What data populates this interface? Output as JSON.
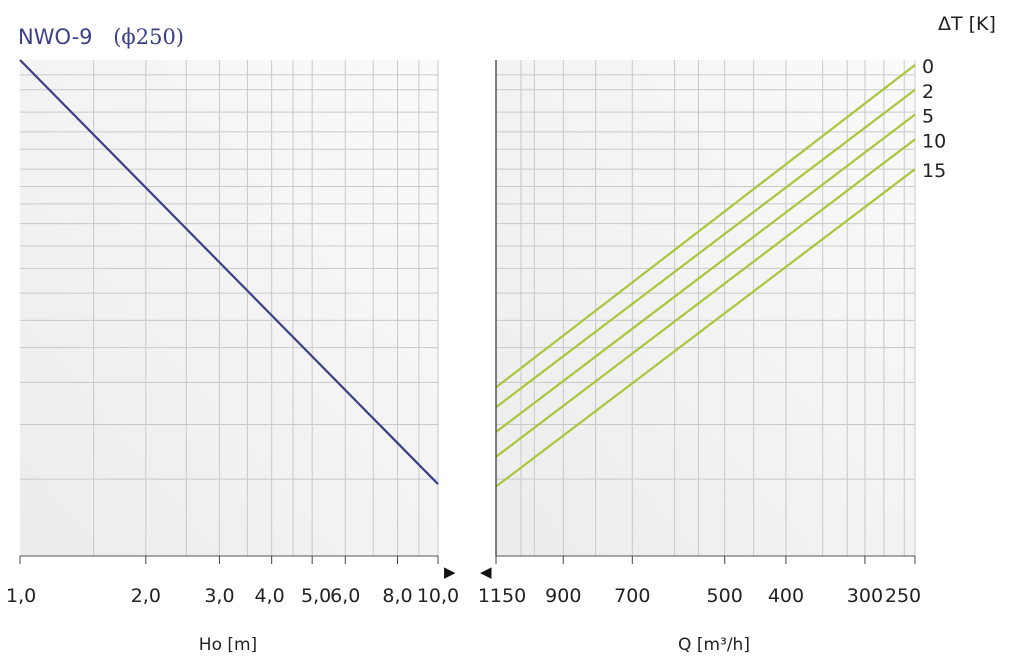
{
  "chart_data": [
    {
      "type": "line",
      "title": "NWO-9",
      "title_symbol": "(ϕ250)",
      "xlabel": "Ho [m]",
      "ylabel": "",
      "x_scale": "log",
      "xlim": [
        1.0,
        10.0
      ],
      "tick_labels": [
        "1,0",
        "2,0",
        "3,0",
        "4,0",
        "5,0",
        "6,0",
        "8,0",
        "10,0"
      ],
      "tick_values": [
        1,
        2,
        3,
        4,
        5,
        6,
        8,
        10
      ],
      "y_scale": "log",
      "grid": true,
      "series": [
        {
          "name": "",
          "color": "#3b3f86",
          "x": [
            1.0,
            10.0
          ],
          "y_fraction": [
            1.0,
            0.145
          ]
        }
      ]
    },
    {
      "type": "line",
      "title": "",
      "xlabel": "Q [m³/h]",
      "x_scale": "log",
      "x_direction": "reversed",
      "xlim": [
        1150,
        250
      ],
      "tick_labels": [
        "1150",
        "900",
        "700",
        "500",
        "400",
        "300",
        "250"
      ],
      "tick_values": [
        1150,
        900,
        700,
        500,
        400,
        300,
        250
      ],
      "legend_title": "ΔT [K]",
      "legend_placement": "right",
      "grid": true,
      "series": [
        {
          "name": "0",
          "color": "#a9c63a",
          "x": [
            1150,
            250
          ],
          "y_fraction": [
            0.34,
            0.99
          ]
        },
        {
          "name": "2",
          "color": "#a9c63a",
          "x": [
            1150,
            250
          ],
          "y_fraction": [
            0.3,
            0.94
          ]
        },
        {
          "name": "5",
          "color": "#a9c63a",
          "x": [
            1150,
            250
          ],
          "y_fraction": [
            0.25,
            0.89
          ]
        },
        {
          "name": "10",
          "color": "#a9c63a",
          "x": [
            1150,
            250
          ],
          "y_fraction": [
            0.2,
            0.84
          ]
        },
        {
          "name": "15",
          "color": "#a9c63a",
          "x": [
            1150,
            250
          ],
          "y_fraction": [
            0.14,
            0.78
          ]
        }
      ]
    }
  ],
  "arrows": {
    "left": "▶",
    "right": "◀"
  },
  "colors": {
    "grid": "#c9c9c9",
    "panel": "#f5f5f5",
    "left_line": "#3b3f86",
    "right_lines": "#a9c63a"
  }
}
